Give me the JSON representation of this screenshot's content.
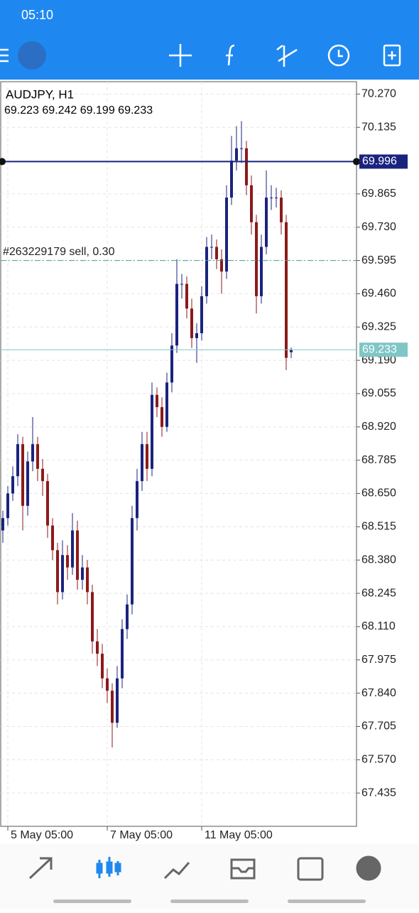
{
  "status_bar": {
    "time": "05:10"
  },
  "chart_data": {
    "type": "candlestick",
    "title": "AUDJPY, H1",
    "up_color": "#1a237e",
    "down_color": "#8b1a1a",
    "categories": [
      null,
      "5 May 05:00",
      null,
      null,
      null,
      null,
      null,
      null,
      null,
      null,
      null,
      null,
      null,
      null,
      null,
      null,
      null,
      null,
      null,
      null,
      null,
      "7 May 05:00",
      null,
      null,
      null,
      null,
      null,
      null,
      null,
      null,
      null,
      null,
      null,
      null,
      null,
      null,
      null,
      null,
      null,
      null,
      "11 May 05:00",
      null,
      null,
      null,
      null,
      null,
      null,
      null,
      null,
      null,
      null,
      null,
      null,
      null,
      null,
      null,
      null,
      null,
      null
    ],
    "ohlc": [
      [
        68.5,
        68.58,
        68.45,
        68.55
      ],
      [
        68.55,
        68.68,
        68.52,
        68.65
      ],
      [
        68.65,
        68.76,
        68.62,
        68.72
      ],
      [
        68.72,
        68.89,
        68.68,
        68.85
      ],
      [
        68.85,
        68.88,
        68.5,
        68.6
      ],
      [
        68.6,
        68.82,
        68.56,
        68.78
      ],
      [
        68.78,
        68.96,
        68.74,
        68.85
      ],
      [
        68.85,
        68.88,
        68.7,
        68.75
      ],
      [
        68.75,
        68.79,
        68.64,
        68.7
      ],
      [
        68.7,
        68.73,
        68.47,
        68.52
      ],
      [
        68.52,
        68.55,
        68.38,
        68.42
      ],
      [
        68.42,
        68.45,
        68.2,
        68.25
      ],
      [
        68.25,
        68.46,
        68.22,
        68.4
      ],
      [
        68.4,
        68.44,
        68.3,
        68.35
      ],
      [
        68.35,
        68.57,
        68.32,
        68.5
      ],
      [
        68.5,
        68.54,
        68.26,
        68.3
      ],
      [
        68.3,
        68.4,
        68.26,
        68.35
      ],
      [
        68.35,
        68.38,
        68.2,
        68.25
      ],
      [
        68.25,
        68.28,
        68.0,
        68.05
      ],
      [
        68.05,
        68.1,
        67.95,
        68.0
      ],
      [
        68.0,
        68.04,
        67.86,
        67.9
      ],
      [
        67.9,
        67.94,
        67.8,
        67.85
      ],
      [
        67.85,
        67.88,
        67.62,
        67.72
      ],
      [
        67.72,
        67.95,
        67.7,
        67.9
      ],
      [
        67.9,
        68.14,
        67.86,
        68.1
      ],
      [
        68.1,
        68.24,
        68.06,
        68.2
      ],
      [
        68.2,
        68.6,
        68.16,
        68.55
      ],
      [
        68.55,
        68.75,
        68.5,
        68.7
      ],
      [
        68.7,
        68.9,
        68.66,
        68.85
      ],
      [
        68.85,
        68.9,
        68.7,
        68.75
      ],
      [
        68.75,
        69.1,
        68.72,
        69.05
      ],
      [
        69.05,
        69.08,
        68.96,
        69.0
      ],
      [
        69.0,
        69.04,
        68.88,
        68.92
      ],
      [
        68.92,
        69.14,
        68.9,
        69.1
      ],
      [
        69.1,
        69.3,
        69.06,
        69.25
      ],
      [
        69.25,
        69.6,
        69.22,
        69.5
      ],
      [
        69.5,
        69.54,
        69.44,
        69.5
      ],
      [
        69.5,
        69.53,
        69.36,
        69.4
      ],
      [
        69.4,
        69.44,
        69.24,
        69.28
      ],
      [
        69.28,
        69.34,
        69.18,
        69.3
      ],
      [
        69.3,
        69.49,
        69.27,
        69.45
      ],
      [
        69.45,
        69.69,
        69.42,
        69.65
      ],
      [
        69.65,
        69.7,
        69.6,
        69.65
      ],
      [
        69.65,
        69.68,
        69.56,
        69.6
      ],
      [
        69.6,
        69.64,
        69.46,
        69.55
      ],
      [
        69.55,
        69.9,
        69.52,
        69.85
      ],
      [
        69.85,
        70.1,
        69.82,
        70.0
      ],
      [
        70.0,
        70.14,
        69.96,
        70.05
      ],
      [
        70.05,
        70.16,
        69.99,
        70.05
      ],
      [
        70.05,
        70.08,
        69.86,
        69.9
      ],
      [
        69.9,
        69.94,
        69.7,
        69.75
      ],
      [
        69.75,
        69.78,
        69.38,
        69.45
      ],
      [
        69.45,
        69.7,
        69.42,
        69.65
      ],
      [
        69.65,
        69.96,
        69.62,
        69.85
      ],
      [
        69.85,
        69.9,
        69.8,
        69.85
      ],
      [
        69.85,
        69.89,
        69.81,
        69.85
      ],
      [
        69.85,
        69.88,
        69.7,
        69.75
      ],
      [
        69.75,
        69.78,
        69.15,
        69.2
      ],
      [
        69.223,
        69.242,
        69.199,
        69.233
      ]
    ],
    "ylim": [
      67.3,
      70.32
    ],
    "yticks": [
      {
        "value": 70.27,
        "label": "70.270"
      },
      {
        "value": 70.135,
        "label": "70.135"
      },
      {
        "value": 69.996,
        "label": "69.996"
      },
      {
        "value": 69.865,
        "label": "69.865"
      },
      {
        "value": 69.73,
        "label": "69.730"
      },
      {
        "value": 69.595,
        "label": "69.595"
      },
      {
        "value": 69.46,
        "label": "69.460"
      },
      {
        "value": 69.325,
        "label": "69.325"
      },
      {
        "value": 69.19,
        "label": "69.190"
      },
      {
        "value": 69.055,
        "label": "69.055"
      },
      {
        "value": 68.92,
        "label": "68.920"
      },
      {
        "value": 68.785,
        "label": "68.785"
      },
      {
        "value": 68.65,
        "label": "68.650"
      },
      {
        "value": 68.515,
        "label": "68.515"
      },
      {
        "value": 68.38,
        "label": "68.380"
      },
      {
        "value": 68.245,
        "label": "68.245"
      },
      {
        "value": 68.11,
        "label": "68.110"
      },
      {
        "value": 67.975,
        "label": "67.975"
      },
      {
        "value": 67.84,
        "label": "67.840"
      },
      {
        "value": 67.705,
        "label": "67.705"
      },
      {
        "value": 67.57,
        "label": "67.570"
      },
      {
        "value": 67.435,
        "label": "67.435"
      }
    ],
    "level_line": {
      "value": 69.996,
      "color": "#1a237e"
    },
    "order_line": {
      "label": "#263229179 sell, 0.30",
      "value": 69.595,
      "color": "#4a9a9a"
    },
    "bid_line": {
      "value": 69.233,
      "color": "#7fc6c6"
    },
    "grid": true
  }
}
